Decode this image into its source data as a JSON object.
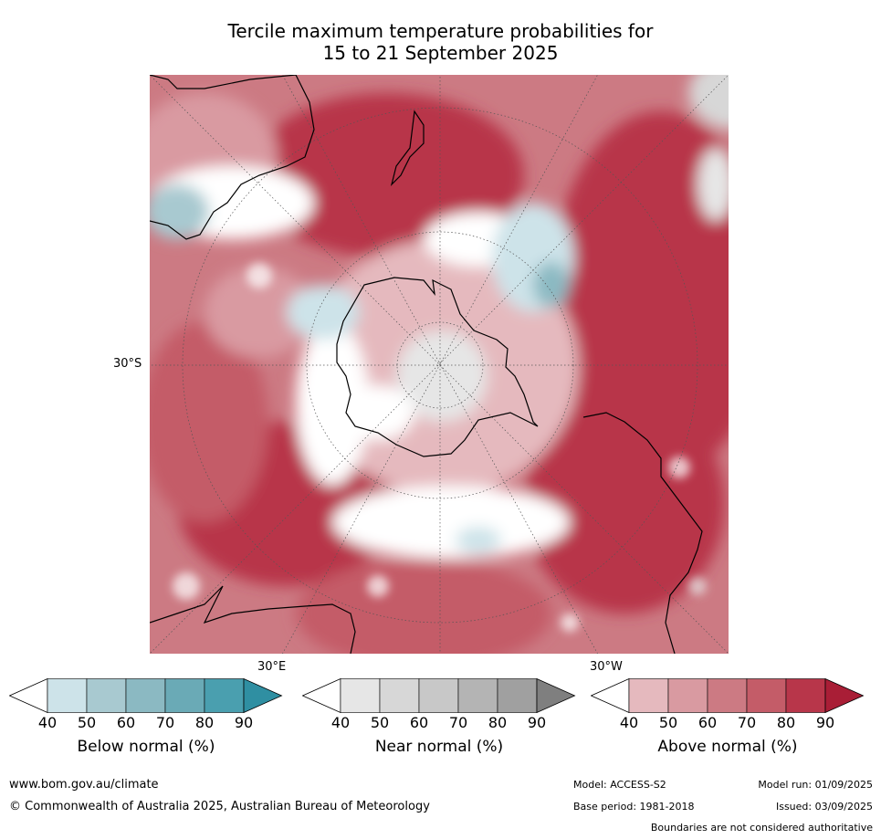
{
  "title_line1": "Tercile maximum temperature probabilities for",
  "title_line2": "15 to 21 September 2025",
  "map": {
    "projection": "south-polar stereographic",
    "labels": {
      "lat": "30°S",
      "lon_east": "30°E",
      "lon_west": "30°W"
    }
  },
  "colorbars": [
    {
      "label": "Below normal (%)",
      "ticks": [
        "40",
        "50",
        "60",
        "70",
        "80",
        "90"
      ],
      "colors": [
        "#ffffff",
        "#cde3e9",
        "#a8c9d0",
        "#8bb9c2",
        "#6aaab6",
        "#4a9faf",
        "#2f8fa2"
      ]
    },
    {
      "label": "Near normal (%)",
      "ticks": [
        "40",
        "50",
        "60",
        "70",
        "80",
        "90"
      ],
      "colors": [
        "#ffffff",
        "#e6e6e6",
        "#d7d7d7",
        "#c8c8c8",
        "#b4b4b4",
        "#a0a0a0",
        "#7f7f7f"
      ]
    },
    {
      "label": "Above normal (%)",
      "ticks": [
        "40",
        "50",
        "60",
        "70",
        "80",
        "90"
      ],
      "colors": [
        "#ffffff",
        "#e5b9be",
        "#d99aa1",
        "#cc7a83",
        "#c45c68",
        "#b8364a",
        "#a91e36"
      ]
    }
  ],
  "footer": {
    "website": "www.bom.gov.au/climate",
    "copyright": "© Commonwealth of Australia 2025, Australian Bureau of Meteorology",
    "model": "Model: ACCESS-S2",
    "model_run": "Model run: 01/09/2025",
    "base_period": "Base period: 1981-2018",
    "issued": "Issued: 03/09/2025",
    "disclaimer": "Boundaries are not considered authoritative"
  }
}
